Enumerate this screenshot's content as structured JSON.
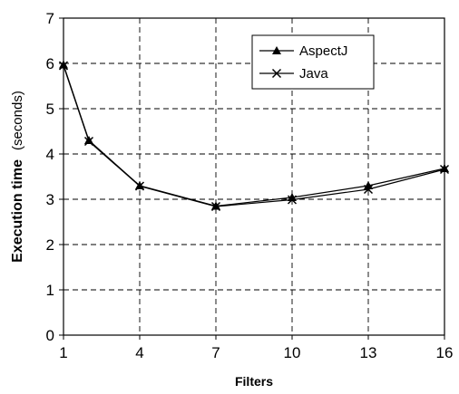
{
  "chart_data": {
    "type": "line",
    "title": "",
    "xlabel": "Filters",
    "ylabel_main": "Execution time",
    "ylabel_unit": "(seconds)",
    "x_ticks": [
      "1",
      "4",
      "7",
      "10",
      "13",
      "16"
    ],
    "y_ticks": [
      "0",
      "1",
      "2",
      "3",
      "4",
      "5",
      "6",
      "7"
    ],
    "xlim": [
      1,
      16
    ],
    "ylim": [
      0,
      7
    ],
    "grid": true,
    "legend_position": "top-right",
    "x": [
      1,
      2,
      4,
      7,
      10,
      13,
      16
    ],
    "series": [
      {
        "name": "AspectJ",
        "marker": "triangle",
        "values": [
          5.97,
          4.3,
          3.3,
          2.85,
          3.04,
          3.3,
          3.68
        ]
      },
      {
        "name": "Java",
        "marker": "x",
        "values": [
          5.95,
          4.28,
          3.29,
          2.84,
          2.99,
          3.22,
          3.66
        ]
      }
    ]
  }
}
